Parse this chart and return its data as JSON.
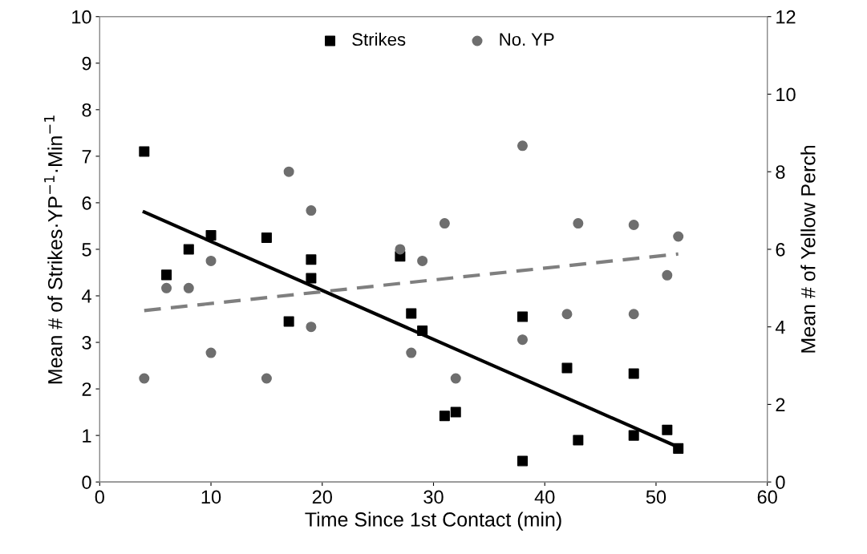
{
  "chart_data": {
    "type": "scatter",
    "xlabel": "Time Since 1st Contact (min)",
    "ylabel": "Mean # of Strikes·YP$^{−1}$·Min$^{−1}$",
    "y2label": "Mean # of Yellow Perch",
    "xlim": [
      0,
      60
    ],
    "xticks": [
      0,
      10,
      20,
      30,
      40,
      50,
      60
    ],
    "ylim": [
      0,
      10
    ],
    "yticks": [
      0,
      1,
      2,
      3,
      4,
      5,
      6,
      7,
      8,
      9,
      10
    ],
    "y2lim": [
      0,
      12
    ],
    "y2ticks": [
      0,
      2,
      4,
      6,
      8,
      10,
      12
    ],
    "grid": false,
    "legend": "top",
    "series": [
      {
        "name": "Strikes",
        "marker": "square",
        "color": "#000000",
        "axis": "y",
        "x": [
          4,
          6,
          8,
          10,
          15,
          17,
          19,
          19,
          27,
          28,
          29,
          31,
          32,
          38,
          38,
          42,
          43,
          48,
          48,
          51,
          52
        ],
        "values": [
          7.1,
          4.45,
          5.0,
          5.3,
          5.25,
          3.45,
          4.78,
          4.38,
          4.85,
          3.62,
          3.25,
          1.42,
          1.5,
          3.55,
          0.45,
          2.45,
          0.9,
          2.33,
          1.0,
          1.12,
          0.72
        ]
      },
      {
        "name": "No. YP",
        "marker": "circle",
        "color": "#6e6e6e",
        "axis": "y2",
        "x": [
          4,
          6,
          8,
          10,
          10,
          15,
          17,
          19,
          19,
          27,
          28,
          29,
          31,
          32,
          38,
          38,
          42,
          43,
          48,
          48,
          51,
          52
        ],
        "values": [
          2.67,
          5.0,
          5.0,
          5.7,
          3.33,
          2.67,
          8.0,
          7.0,
          4.0,
          6.0,
          3.33,
          5.7,
          6.67,
          2.67,
          8.67,
          3.67,
          4.33,
          6.67,
          6.63,
          4.33,
          5.33,
          6.33
        ]
      },
      {
        "type": "line",
        "color": "#000000",
        "line_style": "solid",
        "axis": "y",
        "x": [
          4,
          52
        ],
        "values": [
          5.8,
          0.75
        ]
      },
      {
        "type": "line",
        "color": "#7f7f7f",
        "line_style": "dashed",
        "axis": "y2",
        "x": [
          4,
          52
        ],
        "values": [
          4.42,
          5.88
        ]
      }
    ]
  }
}
